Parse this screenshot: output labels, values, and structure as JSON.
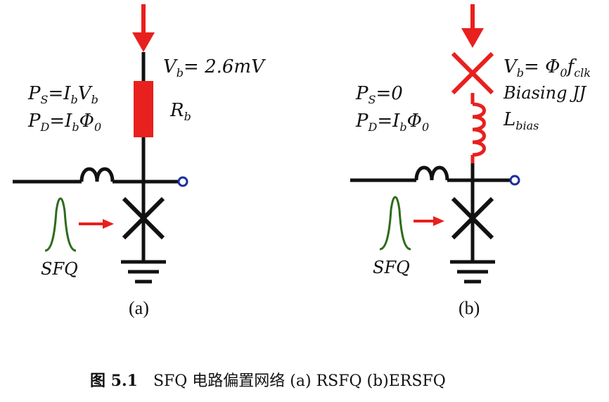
{
  "left": {
    "vb_label": "V",
    "vb_sub": "b",
    "vb_value": "= 2.6mV",
    "ps_main": "P",
    "ps_sub": "S",
    "ps_eq": "=I",
    "ps_sub2": "b",
    "ps_tail": "V",
    "ps_sub3": "b",
    "pd_main": "P",
    "pd_sub": "D",
    "pd_eq": "=I",
    "pd_sub2": "b",
    "pd_tail": "Φ",
    "pd_sub3": "0",
    "rb_main": "R",
    "rb_sub": "b",
    "pulse_label": "SFQ",
    "panel_label": "(a)"
  },
  "right": {
    "vb_main": "V",
    "vb_sub": "b",
    "vb_eq": "= Φ",
    "vb_sub2": "0",
    "vb_f": "f",
    "vb_sub3": "clk",
    "biasing_label": "Biasing JJ",
    "l_main": "L",
    "l_sub": "bias",
    "ps_main": "P",
    "ps_sub": "S",
    "ps_tail": "=0",
    "pd_main": "P",
    "pd_sub": "D",
    "pd_eq": "=I",
    "pd_sub2": "b",
    "pd_tail": "Φ",
    "pd_sub3": "0",
    "pulse_label": "SFQ",
    "panel_label": "(b)"
  },
  "caption": {
    "fig_no": "图 5.1",
    "text": "SFQ 电路偏置网络 (a) RSFQ    (b)ERSFQ"
  },
  "colors": {
    "wire": "#111111",
    "bias": "#e8201e",
    "pulse": "#2e6b1c",
    "port": "#1a2fa0"
  }
}
